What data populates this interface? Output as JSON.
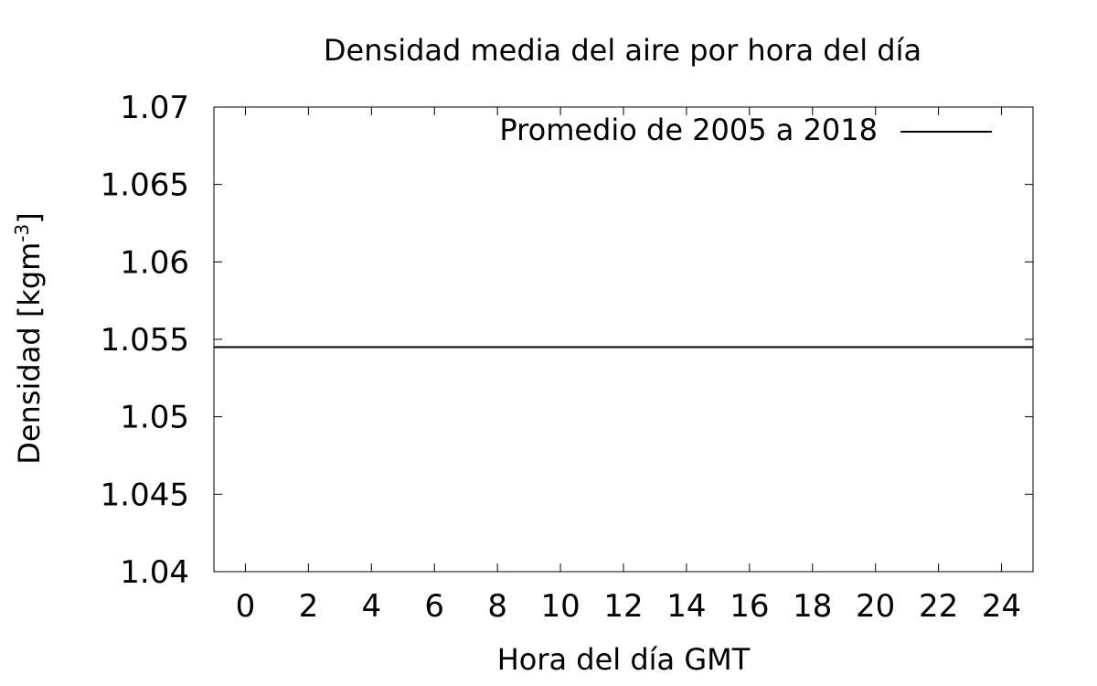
{
  "chart_data": {
    "type": "line",
    "title": "Densidad media del aire por hora del día",
    "xlabel": "Hora del día GMT",
    "ylabel_main": "Densidad [kgm",
    "ylabel_sup": "-3",
    "ylabel_close": "]",
    "xlim": [
      -1,
      25
    ],
    "ylim": [
      1.04,
      1.07
    ],
    "x_ticks": [
      0,
      2,
      4,
      6,
      8,
      10,
      12,
      14,
      16,
      18,
      20,
      22,
      24
    ],
    "x_tick_labels": [
      "0",
      "2",
      "4",
      "6",
      "8",
      "10",
      "12",
      "14",
      "16",
      "18",
      "20",
      "22",
      "24"
    ],
    "y_ticks": [
      1.04,
      1.045,
      1.05,
      1.055,
      1.06,
      1.065,
      1.07
    ],
    "y_tick_labels": [
      "1.04",
      "1.045",
      "1.05",
      "1.055",
      "1.06",
      "1.065",
      "1.07"
    ],
    "grid": false,
    "legend_position": "top-right",
    "series": [
      {
        "name": "Promedio de 2005 a 2018",
        "color": "#000000",
        "x": [
          -1,
          25
        ],
        "y": [
          1.0545,
          1.0545
        ]
      }
    ]
  }
}
